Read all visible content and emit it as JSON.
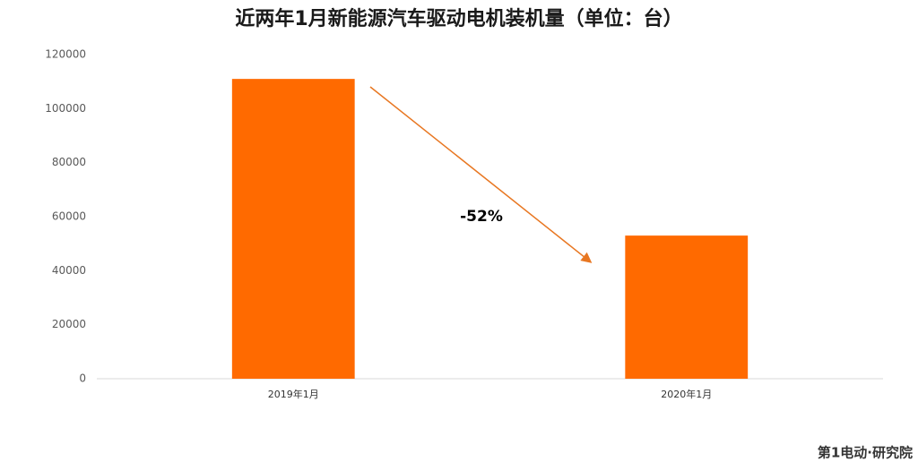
{
  "chart_data": {
    "type": "bar",
    "title": "近两年1月新能源汽车驱动电机装机量（单位：台）",
    "categories": [
      "2019年1月",
      "2020年1月"
    ],
    "values": [
      111000,
      53000
    ],
    "color": "#ff6a00",
    "ylim": [
      0,
      120000
    ],
    "yticks": [
      0,
      20000,
      40000,
      60000,
      80000,
      100000,
      120000
    ],
    "grid": false,
    "annotation": "-52%",
    "source": "第1电动·研究院"
  }
}
